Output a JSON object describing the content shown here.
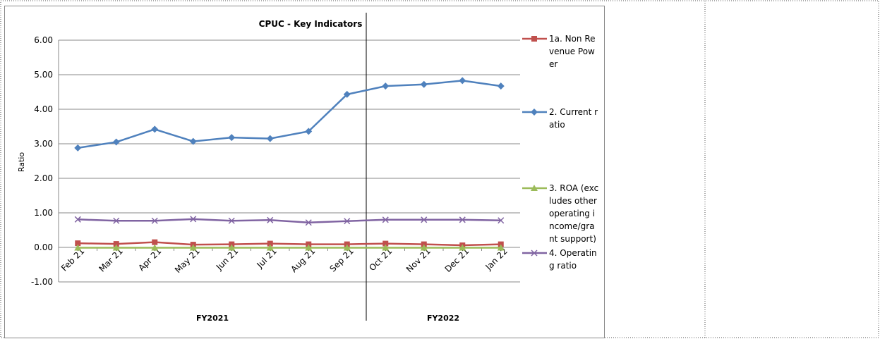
{
  "chart_data": {
    "type": "line",
    "title": "CPUC - Key Indicators",
    "y_label": "Ratio",
    "categories": [
      "Feb 21",
      "Mar 21",
      "Apr 21",
      "May 21",
      "Jun 21",
      "Jul 21",
      "Aug 21",
      "Sep 21",
      "Oct 21",
      "Nov 21",
      "Dec 21",
      "Jan 22"
    ],
    "groups": [
      {
        "label": "FY2021",
        "from": 0,
        "to": 7
      },
      {
        "label": "FY2022",
        "from": 8,
        "to": 11
      }
    ],
    "series": [
      {
        "name": "1a. Non Revenue Power",
        "color": "#C0504D",
        "marker": "square",
        "values": [
          0.12,
          0.1,
          0.15,
          0.08,
          0.09,
          0.11,
          0.09,
          0.09,
          0.11,
          0.09,
          0.06,
          0.09
        ]
      },
      {
        "name": "2. Current ratio",
        "color": "#4F81BD",
        "marker": "diamond",
        "values": [
          2.88,
          3.05,
          3.42,
          3.07,
          3.18,
          3.15,
          3.36,
          4.43,
          4.67,
          4.72,
          4.83,
          4.67
        ]
      },
      {
        "name": "3. ROA (excludes other operating income/grant support)",
        "color": "#9BBB59",
        "marker": "triangle",
        "values": [
          -0.01,
          -0.01,
          -0.01,
          -0.01,
          -0.01,
          -0.01,
          -0.01,
          -0.01,
          -0.01,
          -0.01,
          -0.01,
          -0.01
        ]
      },
      {
        "name": "4. Operating ratio",
        "color": "#8064A2",
        "marker": "x",
        "values": [
          0.81,
          0.77,
          0.77,
          0.82,
          0.77,
          0.79,
          0.72,
          0.76,
          0.8,
          0.8,
          0.8,
          0.78
        ]
      }
    ],
    "ylim": [
      -1,
      6
    ],
    "yticks": [
      {
        "value": -1,
        "label": "-1.00"
      },
      {
        "value": 0,
        "label": "0.00"
      },
      {
        "value": 1,
        "label": "1.00"
      },
      {
        "value": 2,
        "label": "2.00"
      },
      {
        "value": 3,
        "label": "3.00"
      },
      {
        "value": 4,
        "label": "4.00"
      },
      {
        "value": 5,
        "label": "5.00"
      },
      {
        "value": 6,
        "label": "6.00"
      }
    ],
    "grid": true,
    "legend": "right"
  }
}
